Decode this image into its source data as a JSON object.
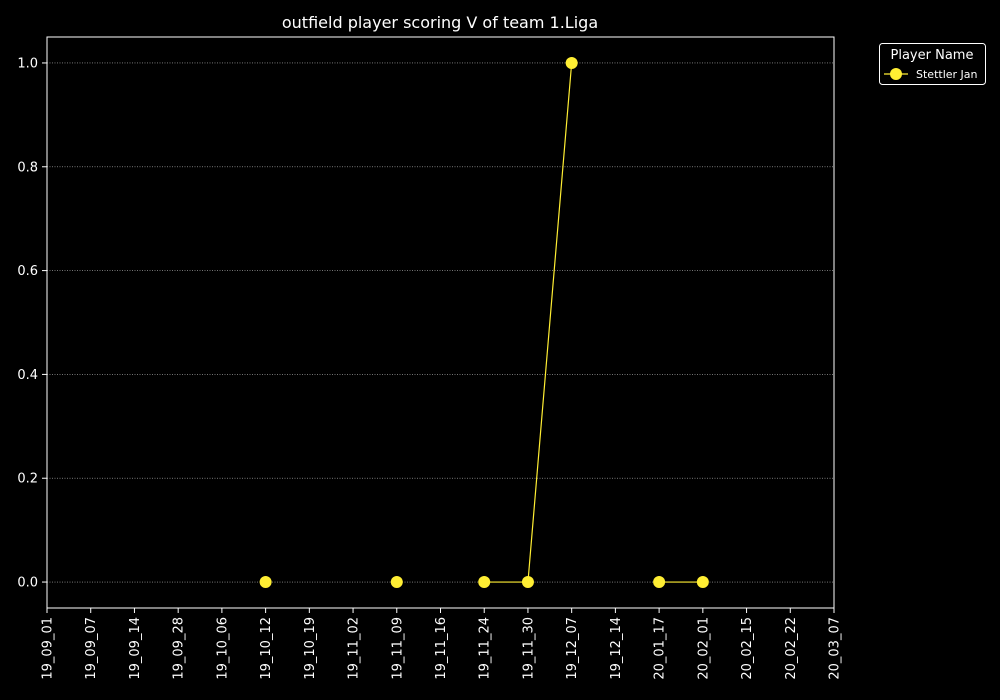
{
  "chart_data": {
    "type": "line",
    "title": "outfield player scoring V of team 1.Liga",
    "xlabel": "",
    "ylabel": "",
    "x_categories": [
      "19_09_01",
      "19_09_07",
      "19_09_14",
      "19_09_28",
      "19_10_06",
      "19_10_12",
      "19_10_19",
      "19_11_02",
      "19_11_09",
      "19_11_16",
      "19_11_24",
      "19_11_30",
      "19_12_07",
      "19_12_14",
      "20_01_17",
      "20_02_01",
      "20_02_15",
      "20_02_22",
      "20_03_07"
    ],
    "y_ticks": [
      "0.0",
      "0.2",
      "0.4",
      "0.6",
      "0.8",
      "1.0"
    ],
    "ylim": [
      -0.05,
      1.05
    ],
    "grid": "horizontal, dotted",
    "legend": {
      "title": "Player Name",
      "placement": "outside top-right"
    },
    "series": [
      {
        "name": "Stettler Jan",
        "color": "#ffee33",
        "segments": [
          [
            {
              "x": "19_10_12",
              "y": 0
            }
          ],
          [
            {
              "x": "19_11_09",
              "y": 0
            }
          ],
          [
            {
              "x": "19_11_24",
              "y": 0
            },
            {
              "x": "19_11_30",
              "y": 0
            },
            {
              "x": "19_12_07",
              "y": 1
            }
          ],
          [
            {
              "x": "20_01_17",
              "y": 0
            },
            {
              "x": "20_02_01",
              "y": 0
            }
          ]
        ]
      }
    ]
  },
  "colors": {
    "background": "#000000",
    "foreground": "#ffffff",
    "grid": "#bbbbbb"
  }
}
